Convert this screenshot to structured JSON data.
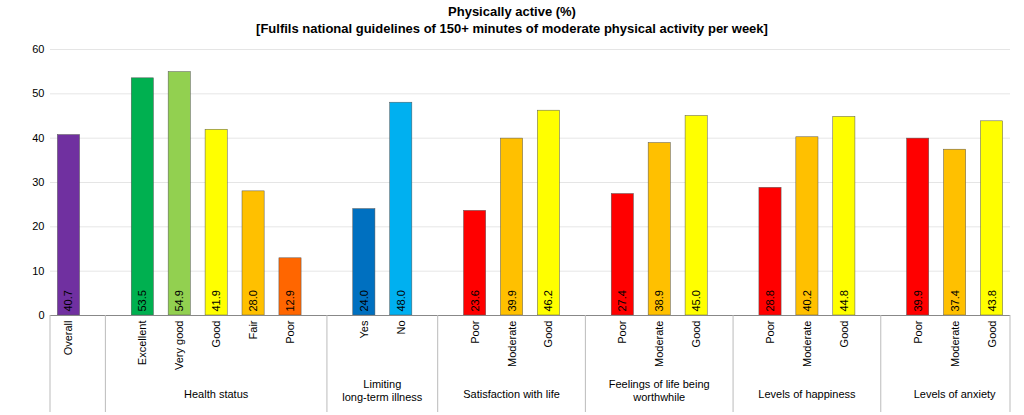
{
  "chart_data": {
    "type": "bar",
    "title": "Physically active (%)",
    "subtitle": "[Fulfils national guidelines of 150+ minutes of moderate physical activity per week]",
    "categories": [
      "Overall",
      "Excellent",
      "Very good",
      "Good",
      "Fair",
      "Poor",
      "Yes",
      "No",
      "Poor",
      "Moderate",
      "Good",
      "Poor",
      "Moderate",
      "Good",
      "Poor",
      "Moderate",
      "Good",
      "Poor",
      "Moderate",
      "Good"
    ],
    "groups": [
      null,
      "Health status",
      "Health status",
      "Health status",
      "Health status",
      "Health status",
      "Limiting long-term illness",
      "Limiting long-term illness",
      "Satisfaction with life",
      "Satisfaction with life",
      "Satisfaction with life",
      "Feelings of life being worthwhile",
      "Feelings of life being worthwhile",
      "Feelings of life being worthwhile",
      "Levels of happiness",
      "Levels of happiness",
      "Levels of happiness",
      "Levels of anxiety",
      "Levels of anxiety",
      "Levels of anxiety"
    ],
    "values": [
      40.7,
      53.5,
      54.9,
      41.9,
      28.0,
      12.9,
      24.0,
      48.0,
      23.6,
      39.9,
      46.2,
      27.4,
      38.9,
      45.0,
      28.8,
      40.2,
      44.8,
      39.9,
      37.4,
      43.8
    ],
    "value_labels": [
      "40.7",
      "53.5",
      "54.9",
      "41.9",
      "28.0",
      "12.9",
      "24.0",
      "48.0",
      "23.6",
      "39.9",
      "46.2",
      "27.4",
      "38.9",
      "45.0",
      "28.8",
      "40.2",
      "44.8",
      "39.9",
      "37.4",
      "43.8"
    ],
    "colors": [
      "#7030a0",
      "#00b050",
      "#92d050",
      "#ffff00",
      "#ffc000",
      "#ff6600",
      "#0070c0",
      "#00b0f0",
      "#ff0000",
      "#ffc000",
      "#ffff00",
      "#ff0000",
      "#ffc000",
      "#ffff00",
      "#ff0000",
      "#ffc000",
      "#ffff00",
      "#ff0000",
      "#ffc000",
      "#ffff00"
    ],
    "ylim": [
      0,
      60
    ],
    "yticks": [
      0,
      10,
      20,
      30,
      40,
      50,
      60
    ],
    "grid": true,
    "data_labels": true
  }
}
